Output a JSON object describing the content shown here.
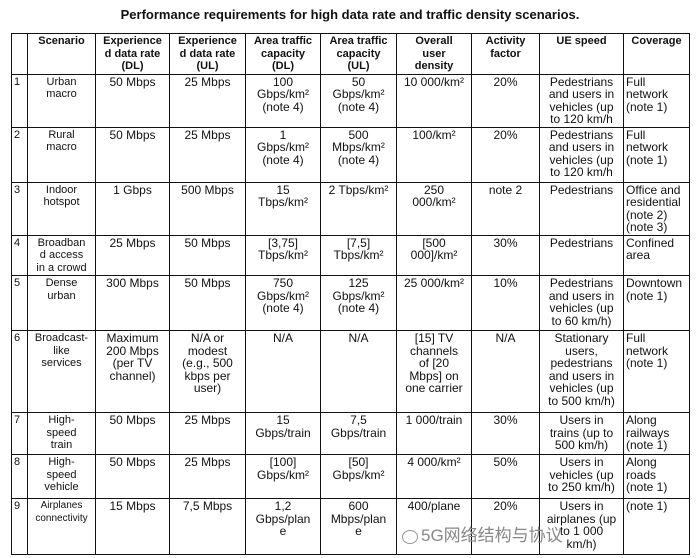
{
  "title": "Performance requirements for high data rate and traffic density scenarios.",
  "columns": [
    "",
    "Scenario",
    "Experience\nd data rate\n(DL)",
    "Experience\nd data rate\n(UL)",
    "Area traffic\ncapacity\n(DL)",
    "Area traffic\ncapacity\n(UL)",
    "Overall\nuser\ndensity",
    "Activity\nfactor",
    "UE speed",
    "Coverage"
  ],
  "rows": [
    [
      "1",
      "Urban\nmacro",
      "50 Mbps",
      "25 Mbps",
      "100\nGbps/km²\n(note 4)",
      "50\nGbps/km²\n(note 4)",
      "10 000/km²",
      "20%",
      "Pedestrians\nand users in\nvehicles (up\nto 120 km/h",
      "Full\nnetwork\n(note 1)"
    ],
    [
      "2",
      "Rural\nmacro",
      "50 Mbps",
      "25 Mbps",
      "1\nGbps/km²\n(note 4)",
      "500\nMbps/km²\n(note 4)",
      "100/km²",
      "20%",
      "Pedestrians\nand users in\nvehicles (up\nto 120 km/h",
      "Full\nnetwork\n(note 1)"
    ],
    [
      "3",
      "Indoor\nhotspot",
      "1 Gbps",
      "500 Mbps",
      "15\nTbps/km²",
      "2 Tbps/km²",
      "250\n000/km²",
      "note 2",
      "Pedestrians",
      "Office and\nresidential\n(note 2)\n(note 3)"
    ],
    [
      "4",
      "Broadban\nd access\nin a crowd",
      "25 Mbps",
      "50 Mbps",
      "[3,75]\nTbps/km²",
      "[7,5]\nTbps/km²",
      "[500\n000]/km²",
      "30%",
      "Pedestrians",
      "Confined\narea"
    ],
    [
      "5",
      "Dense\nurban",
      "300 Mbps",
      "50 Mbps",
      "750\nGbps/km²\n(note 4)",
      "125\nGbps/km²\n(note 4)",
      "25 000/km²",
      "10%",
      "Pedestrians\nand users in\nvehicles (up\nto 60 km/h)",
      "Downtown\n(note 1)"
    ],
    [
      "6",
      "Broadcast-\nlike\nservices",
      "Maximum\n200 Mbps\n(per TV\nchannel)",
      "N/A or\nmodest\n(e.g., 500\nkbps per\nuser)",
      "N/A",
      "N/A",
      "[15] TV\nchannels\nof [20\nMbps] on\none carrier",
      "N/A",
      "Stationary\nusers,\npedestrians\nand users in\nvehicles (up\nto 500 km/h)",
      "Full\nnetwork\n(note 1)"
    ],
    [
      "7",
      "High-\nspeed\ntrain",
      "50 Mbps",
      "25 Mbps",
      "15\nGbps/train",
      "7,5\nGbps/train",
      "1 000/train",
      "30%",
      "Users in\ntrains (up to\n500 km/h)",
      "Along\nrailways\n(note 1)"
    ],
    [
      "8",
      "High-\nspeed\nvehicle",
      "50 Mbps",
      "25 Mbps",
      "[100]\nGbps/km²",
      "[50]\nGbps/km²",
      "4 000/km²",
      "50%",
      "Users in\nvehicles (up\nto 250 km/h)",
      "Along\nroads\n(note 1)"
    ],
    [
      "9",
      "Airplanes\nconnectivity",
      "15 Mbps",
      "7,5 Mbps",
      "1,2\nGbps/plan\ne",
      "600\nMbps/plan\ne",
      "400/plane",
      "20%",
      "Users in\nairplanes (up\nto 1 000\nkm/h)",
      "(note 1)"
    ]
  ],
  "watermark": "5G网络结构与协议"
}
